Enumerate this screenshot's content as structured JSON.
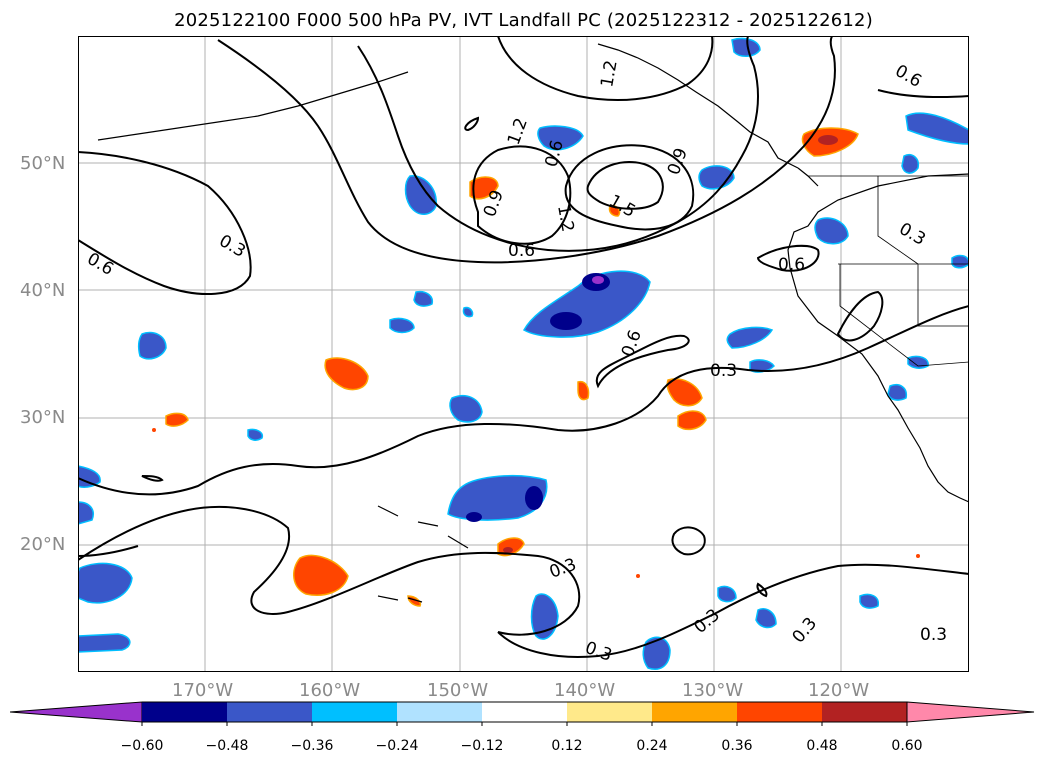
{
  "title": "2025122100 F000 500 hPa PV, IVT Landfall PC (2025122312 - 2025122612)",
  "lat_labels": [
    "50°N",
    "40°N",
    "30°N",
    "20°N"
  ],
  "lon_labels": [
    "170°W",
    "160°W",
    "150°W",
    "140°W",
    "130°W",
    "120°W"
  ],
  "contour_labels": [
    "1.2",
    "0.6",
    "0.9",
    "1.2",
    "1.5",
    "0.9",
    "0.6",
    "0.3",
    "0.6",
    "1.2",
    "0.6",
    "0.3",
    "0.6",
    "0.3",
    "0.3",
    "0.3",
    "0.3",
    "0.3",
    "0.3",
    "0.6"
  ],
  "colorbar": {
    "ticks": [
      "−0.60",
      "−0.48",
      "−0.36",
      "−0.24",
      "−0.12",
      "0.12",
      "0.24",
      "0.36",
      "0.48",
      "0.60"
    ],
    "colors": [
      "#9932cc",
      "#00008b",
      "#3a57c8",
      "#00bfff",
      "#b0e2ff",
      "#ffffff",
      "#ffe98a",
      "#ffa500",
      "#ff4500",
      "#b22222",
      "#ff88aa"
    ]
  },
  "colors": {
    "land_line": "#000000",
    "grid": "#b0b0b0",
    "tick_text": "#8a8a8a"
  }
}
